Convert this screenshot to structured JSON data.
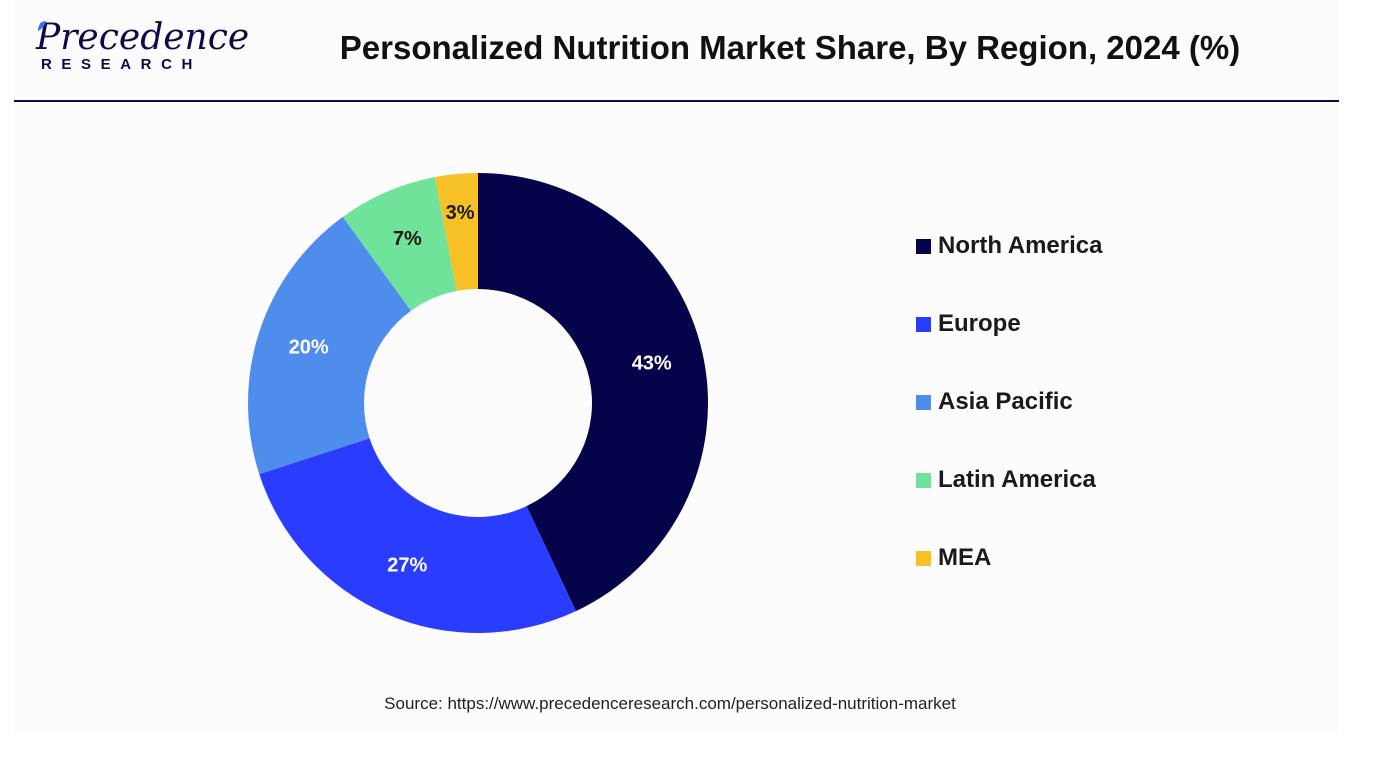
{
  "logo": {
    "word": "Precedence",
    "sub": "RESEARCH",
    "color": "#0c0b45"
  },
  "header": {
    "title": "Personalized Nutrition Market Share, By Region, 2024 (%)"
  },
  "chart_data": {
    "type": "pie",
    "variant": "donut",
    "title": "Personalized Nutrition Market Share, By Region, 2024 (%)",
    "unit": "%",
    "legend_position": "right",
    "slices": [
      {
        "label": "North America",
        "value": 43,
        "display": "43%",
        "color": "#05034a",
        "label_color": "#ffffff"
      },
      {
        "label": "Europe",
        "value": 27,
        "display": "27%",
        "color": "#2a3cff",
        "label_color": "#ffffff"
      },
      {
        "label": "Asia Pacific",
        "value": 20,
        "display": "20%",
        "color": "#4f8ded",
        "label_color": "#ffffff"
      },
      {
        "label": "Latin America",
        "value": 7,
        "display": "7%",
        "color": "#6fe39a",
        "label_color": "#1a1a1a"
      },
      {
        "label": "MEA",
        "value": 3,
        "display": "3%",
        "color": "#f6c027",
        "label_color": "#1a1a1a"
      }
    ]
  },
  "footer": {
    "source": "Source: https://www.precedenceresearch.com/personalized-nutrition-market"
  }
}
